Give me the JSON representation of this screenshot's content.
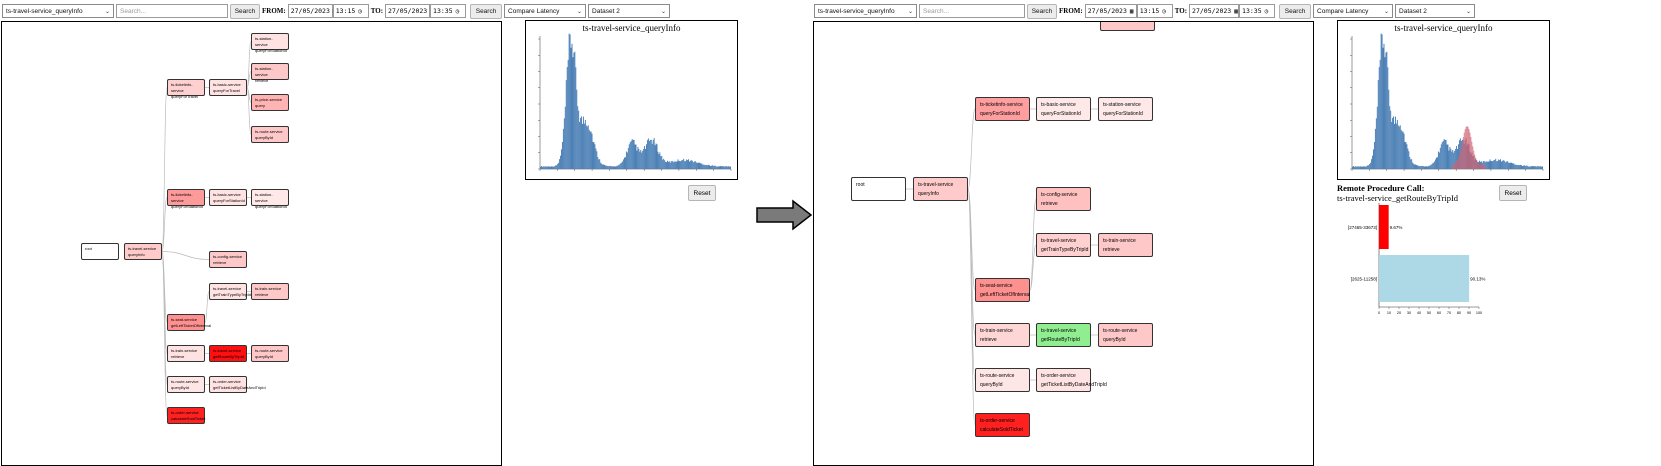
{
  "toolbar": {
    "service_select": "ts-travel-service_queryInfo",
    "search_placeholder": "Search...",
    "search_btn": "Search",
    "from_label": "FROM:",
    "to_label": "TO:",
    "date_from": "27/05/2023",
    "time_from": "13:15",
    "date_to": "27/05/2023",
    "time_to": "13:35",
    "search2_btn": "Search",
    "mode_select": "Compare Latency",
    "dataset_select": "Dataset 2"
  },
  "histogram": {
    "title": "ts-travel-service_queryInfo",
    "reset": "Reset"
  },
  "left_tree": {
    "nodes": [
      {
        "service": "ts-station-service",
        "op": "queryForStationId"
      },
      {
        "service": "ts-ticketinfo-service",
        "op": "queryForTravel"
      },
      {
        "service": "ts-basic-service",
        "op": "queryForTravel"
      },
      {
        "service": "ts-station-service",
        "op": "retrieve"
      },
      {
        "service": "ts-price-service",
        "op": "query"
      },
      {
        "service": "ts-route-service",
        "op": "queryById"
      },
      {
        "service": "ts-ticketinfo-service",
        "op": "queryForStationId"
      },
      {
        "service": "ts-basic-service",
        "op": "queryForStationId"
      },
      {
        "service": "ts-station-service",
        "op": "queryForStationId"
      },
      {
        "service": "root",
        "op": ""
      },
      {
        "service": "ts-travel-service",
        "op": "queryInfo"
      },
      {
        "service": "ts-config-service",
        "op": "retrieve"
      },
      {
        "service": "ts-travel-service",
        "op": "getTrainTypeByTripId"
      },
      {
        "service": "ts-train-service",
        "op": "retrieve"
      },
      {
        "service": "ts-seat-service",
        "op": "getLeftTicketOfInterval"
      },
      {
        "service": "ts-train-service",
        "op": "retrieve"
      },
      {
        "service": "ts-travel-service",
        "op": "getRouteByTripId"
      },
      {
        "service": "ts-route-service",
        "op": "queryById"
      },
      {
        "service": "ts-route-service",
        "op": "queryById"
      },
      {
        "service": "ts-order-service",
        "op": "getTicketListByDateAndTripId"
      },
      {
        "service": "ts-order-service",
        "op": "calculateSoldTicket"
      }
    ]
  },
  "right_tree": {
    "nodes": [
      {
        "service": "ts-ticketinfo-service",
        "op": "queryForStationId"
      },
      {
        "service": "ts-basic-service",
        "op": "queryForStationId"
      },
      {
        "service": "ts-station-service",
        "op": "queryForStationId"
      },
      {
        "service": "root",
        "op": ""
      },
      {
        "service": "ts-travel-service",
        "op": "queryInfo"
      },
      {
        "service": "ts-config-service",
        "op": "retrieve"
      },
      {
        "service": "ts-travel-service",
        "op": "getTrainTypeByTripId"
      },
      {
        "service": "ts-train-service",
        "op": "retrieve"
      },
      {
        "service": "ts-seat-service",
        "op": "getLeftTicketOfInterval"
      },
      {
        "service": "ts-train-service",
        "op": "retrieve"
      },
      {
        "service": "ts-travel-service",
        "op": "getRouteByTripId"
      },
      {
        "service": "ts-route-service",
        "op": "queryById"
      },
      {
        "service": "ts-route-service",
        "op": "queryById"
      },
      {
        "service": "ts-order-service",
        "op": "getTicketListByDateAndTripId"
      },
      {
        "service": "ts-order-service",
        "op": "calculateSoldTicket"
      }
    ]
  },
  "rpc": {
    "label": "Remote Procedure Call:",
    "name": "ts-travel-service_getRouteByTripId"
  },
  "chart_data": {
    "type": "bar",
    "categories": [
      "[27465-33673]",
      "[2625-11258]"
    ],
    "values": [
      9.67,
      90.13
    ],
    "value_labels": [
      "9.67%",
      "90.13%"
    ],
    "xlim": [
      0,
      100
    ],
    "xticks": [
      0,
      10,
      20,
      30,
      40,
      50,
      60,
      70,
      80,
      90,
      100
    ],
    "colors": [
      "#ff0000",
      "#add8e6"
    ]
  }
}
